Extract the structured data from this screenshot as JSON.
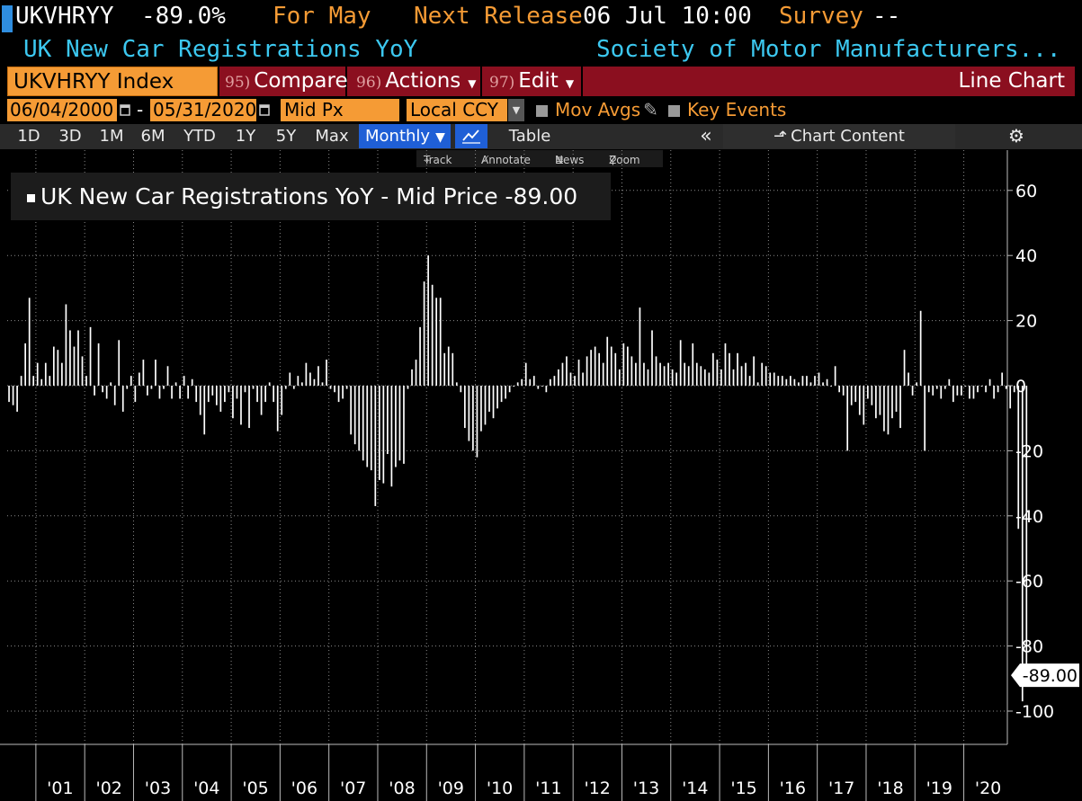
{
  "header": {
    "ticker": "UKVHRYY",
    "value": "-89.0%",
    "for_label": "For May",
    "next_release_label": "Next Release",
    "next_release_value": "06 Jul 10:00",
    "survey_label": "Survey",
    "survey_value": "--",
    "series_name": "UK New Car Registrations YoY",
    "source": "Society of Motor Manufacturers..."
  },
  "toolbar": {
    "security": "UKVHRYY Index",
    "compare_num": "95)",
    "compare": "Compare",
    "actions_num": "96)",
    "actions": "Actions",
    "edit_num": "97)",
    "edit": "Edit",
    "chart_type": "Line Chart"
  },
  "controls": {
    "start_date": "06/04/2000",
    "dash": "-",
    "end_date": "05/31/2020",
    "price_field": "Mid Px",
    "currency": "Local CCY",
    "mov_avgs": "Mov Avgs",
    "key_events": "Key Events"
  },
  "periods": [
    "1D",
    "3D",
    "1M",
    "6M",
    "YTD",
    "1Y",
    "5Y",
    "Max"
  ],
  "frequency": "Monthly",
  "table_label": "Table",
  "chart_content_label": "Chart Content",
  "tools": {
    "track": "Track",
    "annotate": "Annotate",
    "news": "News",
    "zoom": "Zoom"
  },
  "legend": "UK New Car Registrations YoY - Mid Price -89.00",
  "last_value_label": "-89.00",
  "colors": {
    "accent_orange": "#f59b35",
    "cyan": "#3cc8f0",
    "red_bar": "#8b0f1f",
    "selected_blue": "#1f5fd6"
  },
  "chart_data": {
    "type": "bar",
    "frequency": "monthly",
    "x_start": "2000-06",
    "x_end": "2020-05",
    "y_ticks": [
      60,
      40,
      20,
      0,
      -20,
      -40,
      -60,
      -80,
      -100
    ],
    "ylim": [
      -110,
      72
    ],
    "x_tick_labels": [
      "'01",
      "'02",
      "'03",
      "'04",
      "'05",
      "'06",
      "'07",
      "'08",
      "'09",
      "'10",
      "'11",
      "'12",
      "'13",
      "'14",
      "'15",
      "'16",
      "'17",
      "'18",
      "'19",
      "'20"
    ],
    "values": [
      -5,
      -6,
      -8,
      3,
      13,
      27,
      3,
      7,
      2,
      7,
      3,
      12,
      11,
      7,
      25,
      17,
      12,
      17,
      9,
      3,
      18,
      -3,
      13,
      -2,
      -4,
      1,
      -6,
      14,
      -8,
      -1,
      3,
      -5,
      4,
      8,
      -3,
      -1,
      8,
      -4,
      -1,
      6,
      -4,
      1,
      -4,
      3,
      -4,
      2,
      -5,
      -9,
      -15,
      -5,
      -3,
      -6,
      -8,
      -5,
      -2,
      -10,
      -4,
      -12,
      -2,
      -13,
      -1,
      -5,
      -9,
      -5,
      1,
      -5,
      -14,
      -9,
      -1,
      4,
      -1,
      3,
      1,
      7,
      4,
      2,
      6,
      1,
      8,
      -1,
      -2,
      -5,
      -4,
      -1,
      -15,
      -18,
      -20,
      -23,
      -25,
      -26,
      -37,
      -29,
      -30,
      -21,
      -31,
      -25,
      -23,
      -24,
      -1,
      5,
      8,
      18,
      32,
      40,
      31,
      27,
      27,
      10,
      12,
      10,
      1,
      -2,
      -13,
      -17,
      -20,
      -22,
      -14,
      -12,
      -8,
      -10,
      -7,
      -5,
      -4,
      -2,
      0,
      1,
      2,
      7,
      2,
      3,
      -1,
      0,
      -2,
      2,
      3,
      5,
      7,
      9,
      4,
      3,
      8,
      4,
      9,
      11,
      12,
      10,
      7,
      15,
      12,
      10,
      5,
      13,
      12,
      9,
      7,
      24,
      7,
      5,
      17,
      9,
      7,
      6,
      7,
      5,
      4,
      14,
      7,
      6,
      13,
      7,
      6,
      5,
      4,
      10,
      8,
      5,
      13,
      10,
      5,
      10,
      6,
      7,
      3,
      9,
      1,
      7,
      6,
      4,
      4,
      3,
      3,
      2,
      3,
      2,
      1,
      3,
      3,
      1,
      3,
      4,
      1,
      2,
      0,
      6,
      -2,
      -3,
      -20,
      -6,
      -5,
      -9,
      -12,
      -4,
      -6,
      -10,
      -9,
      -14,
      -15,
      -10,
      -8,
      -13,
      11,
      4,
      -3,
      1,
      23,
      -20,
      -2,
      -3,
      -1,
      -4,
      -1,
      2,
      -5,
      -3,
      -3,
      0,
      -4,
      -4,
      -2,
      0,
      -2,
      2,
      -4,
      -2,
      4,
      -1,
      -7,
      -2,
      -44,
      -97,
      -89
    ]
  }
}
